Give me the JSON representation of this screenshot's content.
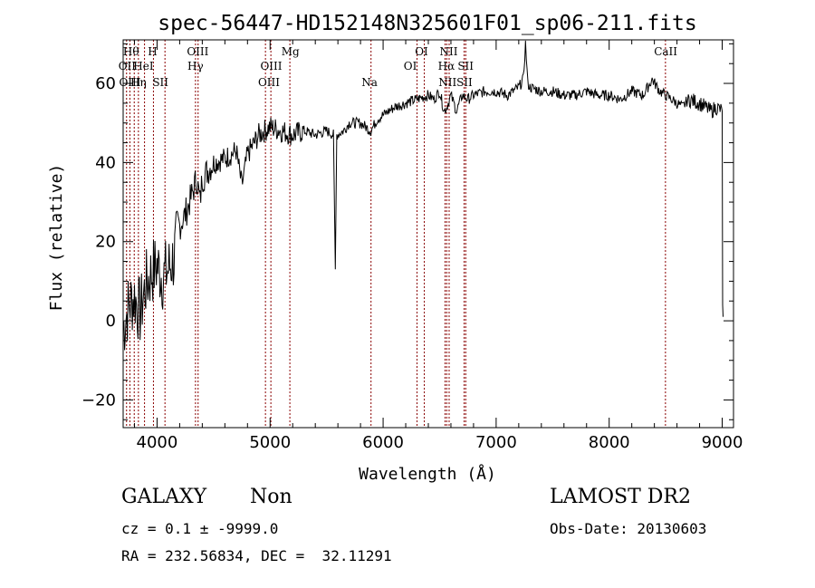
{
  "chart_data": {
    "type": "line",
    "title": "spec-56447-HD152148N325601F01_sp06-211.fits",
    "xlabel": "Wavelength (Å)",
    "ylabel": "Flux (relative)",
    "xlim": [
      3700,
      9100
    ],
    "ylim": [
      -27,
      71
    ],
    "xticks": [
      4000,
      5000,
      6000,
      7000,
      8000,
      9000
    ],
    "yticks": [
      -20,
      0,
      20,
      40,
      60
    ],
    "line_color": "#000000",
    "marker_color": "#8b0000",
    "series": [
      {
        "x": [
          3700,
          3750,
          3800,
          3850,
          3900,
          3950,
          4000,
          4050,
          4100,
          4150,
          4200,
          4250,
          4300,
          4350,
          4380,
          4400,
          4450,
          4500,
          4600,
          4700,
          4750,
          4800,
          4900,
          5000,
          5100,
          5200,
          5300,
          5400,
          5500,
          5560,
          5577,
          5590,
          5650,
          5700,
          5800,
          5890,
          5950,
          6000,
          6100,
          6200,
          6300,
          6400,
          6450,
          6500,
          6540,
          6563,
          6600,
          6650,
          6700,
          6750,
          6800,
          6900,
          7000,
          7100,
          7150,
          7200,
          7240,
          7260,
          7280,
          7300,
          7400,
          7500,
          7600,
          7700,
          7800,
          7900,
          8000,
          8100,
          8200,
          8300,
          8380,
          8450,
          8500,
          8550,
          8600,
          8650,
          8700,
          8800,
          8900,
          8950,
          9000,
          9004,
          9008
        ],
        "y": [
          -2,
          4,
          6,
          2,
          9,
          12,
          14,
          11,
          13,
          16,
          24,
          27,
          31,
          36,
          30,
          36,
          38,
          40,
          41,
          43,
          34,
          42,
          47,
          49,
          48,
          47,
          48,
          47,
          48,
          47,
          13,
          47,
          48,
          50,
          50,
          48,
          51,
          52,
          54,
          55,
          56,
          57,
          56,
          58,
          53,
          54,
          57,
          53,
          57,
          56,
          57,
          58,
          58,
          57,
          58,
          59,
          61,
          70,
          60,
          59,
          58,
          58,
          57,
          57,
          58,
          57,
          57,
          56,
          58,
          57,
          61,
          58,
          57,
          56,
          55,
          54,
          56,
          55,
          53,
          54,
          53,
          4,
          1
        ]
      }
    ],
    "lines": [
      {
        "x": 3730,
        "labels": [
          "OII"
        ]
      },
      {
        "x": 3760,
        "labels": [
          "OIII"
        ]
      },
      {
        "x": 3798,
        "labels": [
          "Hθ"
        ]
      },
      {
        "x": 3835,
        "labels": [
          "Hη"
        ]
      },
      {
        "x": 3889,
        "labels": [
          "HeI"
        ]
      },
      {
        "x": 3968,
        "labels": [
          "H"
        ]
      },
      {
        "x": 4070,
        "labels": [
          "SII"
        ]
      },
      {
        "x": 4340,
        "labels": [
          "Hγ"
        ]
      },
      {
        "x": 4363,
        "labels": [
          "OIII"
        ]
      },
      {
        "x": 4959,
        "labels": [
          "OIII"
        ]
      },
      {
        "x": 5007,
        "labels": [
          "OIII"
        ]
      },
      {
        "x": 5175,
        "labels": [
          "Mg"
        ]
      },
      {
        "x": 5893,
        "labels": [
          "Na"
        ]
      },
      {
        "x": 6300,
        "labels": [
          "OI"
        ]
      },
      {
        "x": 6364,
        "labels": [
          "OI"
        ]
      },
      {
        "x": 6548,
        "labels": [
          "NII"
        ]
      },
      {
        "x": 6563,
        "labels": [
          "Hα"
        ]
      },
      {
        "x": 6584,
        "labels": [
          "NII"
        ]
      },
      {
        "x": 6717,
        "labels": [
          "SII"
        ]
      },
      {
        "x": 6731,
        "labels": [
          "SII"
        ]
      },
      {
        "x": 8498,
        "labels": [
          "CaII"
        ]
      }
    ],
    "line_labels": [
      {
        "text": "Hθ",
        "x": 3770,
        "row": 0
      },
      {
        "text": "H",
        "x": 3960,
        "row": 0
      },
      {
        "text": "OIII",
        "x": 4360,
        "row": 0
      },
      {
        "text": "Mg",
        "x": 5180,
        "row": 0
      },
      {
        "text": "OI",
        "x": 6340,
        "row": 0
      },
      {
        "text": "NII",
        "x": 6580,
        "row": 0
      },
      {
        "text": "CaII",
        "x": 8500,
        "row": 0
      },
      {
        "text": "OII",
        "x": 3735,
        "row": 1
      },
      {
        "text": "HeI",
        "x": 3880,
        "row": 1
      },
      {
        "text": "Hγ",
        "x": 4340,
        "row": 1
      },
      {
        "text": "OIII",
        "x": 5010,
        "row": 1
      },
      {
        "text": "OI",
        "x": 6240,
        "row": 1
      },
      {
        "text": "Hα",
        "x": 6560,
        "row": 1
      },
      {
        "text": "SII",
        "x": 6730,
        "row": 1
      },
      {
        "text": "OIII",
        "x": 3760,
        "row": 2
      },
      {
        "text": "Hη",
        "x": 3835,
        "row": 2
      },
      {
        "text": "SII",
        "x": 4030,
        "row": 2
      },
      {
        "text": "OIII",
        "x": 4990,
        "row": 2
      },
      {
        "text": "Na",
        "x": 5880,
        "row": 2
      },
      {
        "text": "NII",
        "x": 6570,
        "row": 2
      },
      {
        "text": "SII",
        "x": 6720,
        "row": 2
      }
    ]
  },
  "info": {
    "class": "GALAXY",
    "subclass": "Non",
    "survey": "LAMOST DR2",
    "cz": "cz = 0.1 ± -9999.0",
    "obs_date": "Obs-Date: 20130603",
    "coords": "RA = 232.56834, DEC =  32.11291"
  }
}
